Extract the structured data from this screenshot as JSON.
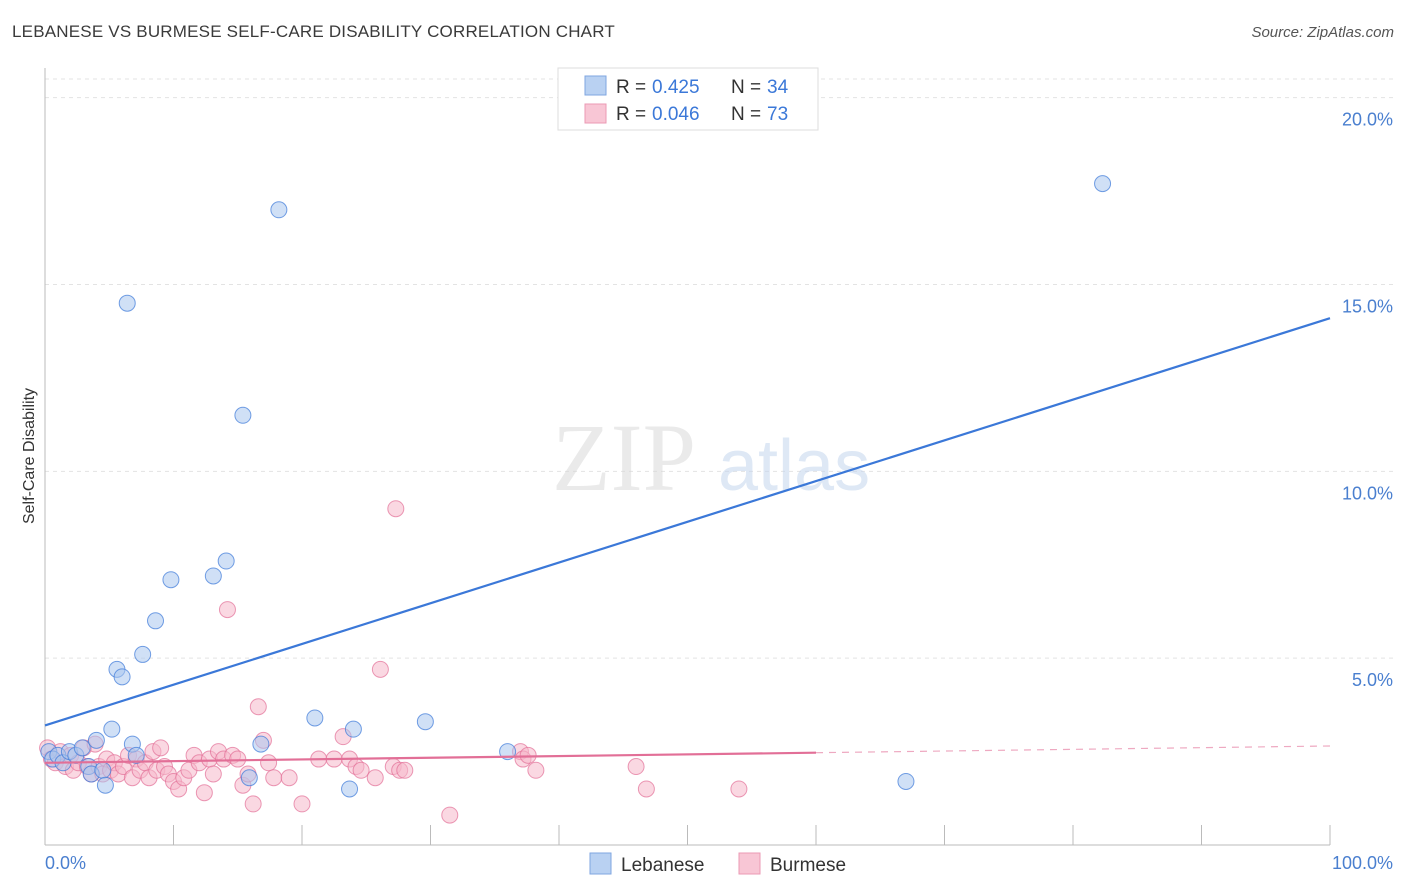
{
  "title": "LEBANESE VS BURMESE SELF-CARE DISABILITY CORRELATION CHART",
  "source": "Source: ZipAtlas.com",
  "watermark": {
    "zip": "ZIP",
    "atlas": "atlas"
  },
  "colors": {
    "lebanese": "#3b78d8",
    "lebanese_fill": "#a9c6ee",
    "burmese": "#e26f97",
    "burmese_fill": "#f5b8cb",
    "tick_text": "#4a7fcf",
    "grid": "#e3e3e3"
  },
  "legend": {
    "r_label": "R =",
    "n_label": "N =",
    "rows": [
      {
        "series": "Lebanese",
        "r": "0.425",
        "n": "34"
      },
      {
        "series": "Burmese",
        "r": "0.046",
        "n": "73"
      }
    ]
  },
  "bottom_legend": [
    "Lebanese",
    "Burmese"
  ],
  "chart_data": {
    "type": "scatter",
    "title": "LEBANESE VS BURMESE SELF-CARE DISABILITY CORRELATION CHART",
    "xlabel": "",
    "ylabel": "Self-Care Disability",
    "xlim": [
      0,
      100
    ],
    "ylim": [
      0,
      20.5
    ],
    "x_tick_labels": [
      "0.0%",
      "100.0%"
    ],
    "y_ticks": [
      5,
      10,
      15,
      20
    ],
    "y_tick_labels": [
      "5.0%",
      "10.0%",
      "15.0%",
      "20.0%"
    ],
    "grid": true,
    "series": [
      {
        "name": "Lebanese",
        "r": 0.425,
        "n": 34,
        "trend": {
          "x0": 0,
          "y0": 3.2,
          "x1": 100,
          "y1": 14.1,
          "solid_to": 100
        },
        "points": [
          [
            0.3,
            2.5
          ],
          [
            0.6,
            2.3
          ],
          [
            1.0,
            2.4
          ],
          [
            1.4,
            2.2
          ],
          [
            1.9,
            2.5
          ],
          [
            2.4,
            2.4
          ],
          [
            2.9,
            2.6
          ],
          [
            3.4,
            2.1
          ],
          [
            3.6,
            1.9
          ],
          [
            4.0,
            2.8
          ],
          [
            4.5,
            2.0
          ],
          [
            4.7,
            1.6
          ],
          [
            5.2,
            3.1
          ],
          [
            5.6,
            4.7
          ],
          [
            6.0,
            4.5
          ],
          [
            6.4,
            14.5
          ],
          [
            6.8,
            2.7
          ],
          [
            7.1,
            2.4
          ],
          [
            7.6,
            5.1
          ],
          [
            8.6,
            6.0
          ],
          [
            9.8,
            7.1
          ],
          [
            13.1,
            7.2
          ],
          [
            14.1,
            7.6
          ],
          [
            15.4,
            11.5
          ],
          [
            15.9,
            1.8
          ],
          [
            16.8,
            2.7
          ],
          [
            18.2,
            17.0
          ],
          [
            21.0,
            3.4
          ],
          [
            23.7,
            1.5
          ],
          [
            24.0,
            3.1
          ],
          [
            29.6,
            3.3
          ],
          [
            36.0,
            2.5
          ],
          [
            67.0,
            1.7
          ],
          [
            82.3,
            17.7
          ]
        ]
      },
      {
        "name": "Burmese",
        "r": 0.046,
        "n": 73,
        "trend": {
          "x0": 0,
          "y0": 2.2,
          "x1": 100,
          "y1": 2.65,
          "solid_to": 60
        },
        "points": [
          [
            0.2,
            2.6
          ],
          [
            0.5,
            2.3
          ],
          [
            0.8,
            2.2
          ],
          [
            1.2,
            2.5
          ],
          [
            1.6,
            2.1
          ],
          [
            2.0,
            2.4
          ],
          [
            2.2,
            2.0
          ],
          [
            2.6,
            2.2
          ],
          [
            3.0,
            2.6
          ],
          [
            3.3,
            2.1
          ],
          [
            3.6,
            1.9
          ],
          [
            3.9,
            2.7
          ],
          [
            4.2,
            2.1
          ],
          [
            4.5,
            1.9
          ],
          [
            4.8,
            2.3
          ],
          [
            5.1,
            2.0
          ],
          [
            5.4,
            2.2
          ],
          [
            5.7,
            1.9
          ],
          [
            6.1,
            2.1
          ],
          [
            6.5,
            2.4
          ],
          [
            6.8,
            1.8
          ],
          [
            7.1,
            2.3
          ],
          [
            7.4,
            2.0
          ],
          [
            7.8,
            2.2
          ],
          [
            8.1,
            1.8
          ],
          [
            8.4,
            2.5
          ],
          [
            8.7,
            2.0
          ],
          [
            9.0,
            2.6
          ],
          [
            9.3,
            2.1
          ],
          [
            9.6,
            1.9
          ],
          [
            10.0,
            1.7
          ],
          [
            10.4,
            1.5
          ],
          [
            10.8,
            1.8
          ],
          [
            11.2,
            2.0
          ],
          [
            11.6,
            2.4
          ],
          [
            12.0,
            2.2
          ],
          [
            12.4,
            1.4
          ],
          [
            12.8,
            2.3
          ],
          [
            13.1,
            1.9
          ],
          [
            13.5,
            2.5
          ],
          [
            13.9,
            2.3
          ],
          [
            14.2,
            6.3
          ],
          [
            14.6,
            2.4
          ],
          [
            15.0,
            2.3
          ],
          [
            15.4,
            1.6
          ],
          [
            15.8,
            1.9
          ],
          [
            16.2,
            1.1
          ],
          [
            16.6,
            3.7
          ],
          [
            17.0,
            2.8
          ],
          [
            17.4,
            2.2
          ],
          [
            17.8,
            1.8
          ],
          [
            19.0,
            1.8
          ],
          [
            20.0,
            1.1
          ],
          [
            21.3,
            2.3
          ],
          [
            22.5,
            2.3
          ],
          [
            23.2,
            2.9
          ],
          [
            23.7,
            2.3
          ],
          [
            24.2,
            2.1
          ],
          [
            24.6,
            2.0
          ],
          [
            25.7,
            1.8
          ],
          [
            26.1,
            4.7
          ],
          [
            27.1,
            2.1
          ],
          [
            27.3,
            9.0
          ],
          [
            27.6,
            2.0
          ],
          [
            28.0,
            2.0
          ],
          [
            31.5,
            0.8
          ],
          [
            37.0,
            2.5
          ],
          [
            37.2,
            2.3
          ],
          [
            37.6,
            2.4
          ],
          [
            38.2,
            2.0
          ],
          [
            46.0,
            2.1
          ],
          [
            46.8,
            1.5
          ],
          [
            54.0,
            1.5
          ]
        ]
      }
    ]
  }
}
